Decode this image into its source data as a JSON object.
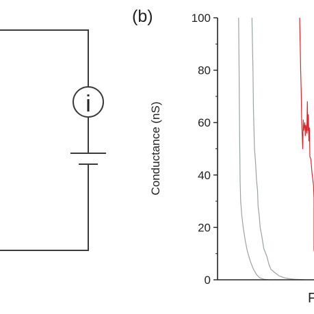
{
  "panel_label": "(b)",
  "circuit": {
    "meter_symbol": "i",
    "wire_color": "#3a3a3a"
  },
  "chart_data": {
    "type": "line",
    "title": "",
    "ylabel": "Conductance (nS)",
    "xlabel_partial": "F",
    "ylim": [
      0,
      100
    ],
    "y_ticks": [
      0,
      20,
      40,
      60,
      80,
      100
    ],
    "y_tick_labels": [
      "0",
      "20",
      "40",
      "60",
      "80",
      "100"
    ],
    "grid": false,
    "series": [
      {
        "color": "#9aa39f",
        "values": [
          [
            0.205,
            100
          ],
          [
            0.21,
            80
          ],
          [
            0.215,
            55
          ],
          [
            0.22,
            38
          ],
          [
            0.225,
            30
          ],
          [
            0.235,
            25
          ],
          [
            0.25,
            20
          ],
          [
            0.27,
            15
          ],
          [
            0.29,
            11
          ],
          [
            0.32,
            7
          ],
          [
            0.35,
            4
          ],
          [
            0.38,
            2
          ],
          [
            0.41,
            0.8
          ],
          [
            0.45,
            0.2
          ],
          [
            0.5,
            0
          ]
        ]
      },
      {
        "color": "#9aa39f",
        "values": [
          [
            0.335,
            100
          ],
          [
            0.34,
            90
          ],
          [
            0.345,
            80
          ],
          [
            0.35,
            65
          ],
          [
            0.36,
            50
          ],
          [
            0.37,
            45
          ],
          [
            0.38,
            38
          ],
          [
            0.39,
            34
          ],
          [
            0.395,
            28
          ],
          [
            0.405,
            25
          ],
          [
            0.415,
            20
          ],
          [
            0.43,
            17
          ],
          [
            0.45,
            12
          ],
          [
            0.48,
            9
          ],
          [
            0.5,
            6
          ],
          [
            0.52,
            4
          ],
          [
            0.55,
            3
          ],
          [
            0.6,
            1.5
          ],
          [
            0.65,
            0.8
          ],
          [
            0.7,
            0.4
          ],
          [
            0.75,
            0.2
          ],
          [
            0.85,
            0
          ]
        ]
      },
      {
        "color": "#d9252b",
        "values": [
          [
            0.8,
            100
          ],
          [
            0.805,
            90
          ],
          [
            0.81,
            80
          ],
          [
            0.815,
            72
          ],
          [
            0.82,
            60
          ],
          [
            0.825,
            55
          ],
          [
            0.83,
            50
          ],
          [
            0.835,
            61
          ],
          [
            0.84,
            57
          ],
          [
            0.85,
            60
          ],
          [
            0.855,
            55
          ],
          [
            0.86,
            59
          ],
          [
            0.87,
            56
          ],
          [
            0.875,
            68
          ],
          [
            0.88,
            57
          ],
          [
            0.885,
            63
          ],
          [
            0.89,
            53
          ],
          [
            0.895,
            58
          ],
          [
            0.9,
            47
          ],
          [
            0.91,
            46
          ],
          [
            0.92,
            41
          ],
          [
            0.935,
            36
          ],
          [
            0.945,
            31
          ],
          [
            0.955,
            25
          ],
          [
            0.965,
            18
          ],
          [
            0.975,
            14
          ],
          [
            0.985,
            12
          ],
          [
            1.0,
            11
          ]
        ]
      }
    ]
  }
}
